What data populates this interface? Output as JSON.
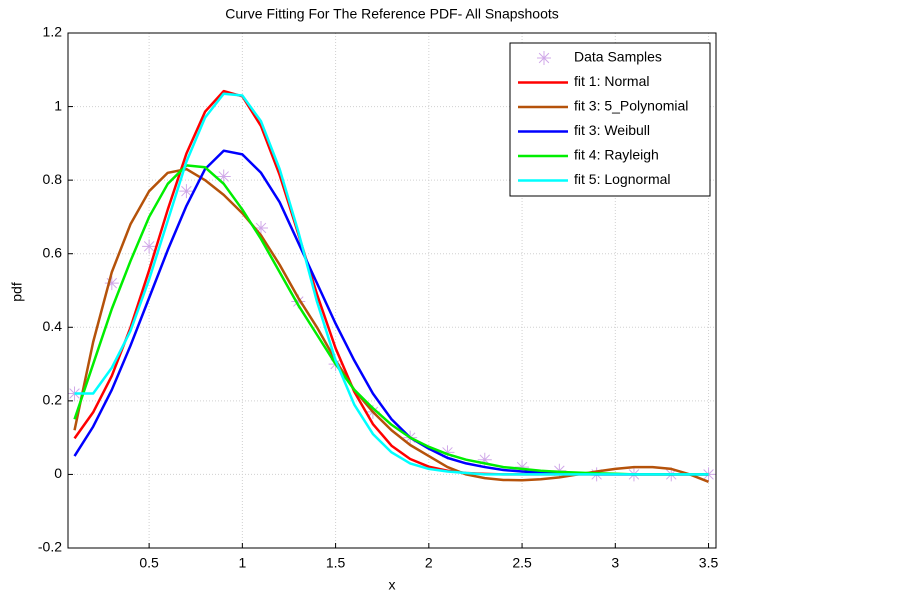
{
  "chart_data": {
    "type": "line",
    "title": "Curve Fitting For The Reference PDF- All Snapshoots",
    "x_label": "x",
    "y_label": "pdf",
    "xlim": [
      0.065,
      3.54
    ],
    "ylim": [
      -0.2,
      1.2
    ],
    "xticks": [
      0.5,
      1,
      1.5,
      2,
      2.5,
      3,
      3.5
    ],
    "yticks": [
      -0.2,
      0,
      0.2,
      0.4,
      0.6,
      0.8,
      1,
      1.2
    ],
    "grid": true,
    "legend": "top-right",
    "x": [
      0.1,
      0.2,
      0.3,
      0.4,
      0.5,
      0.6,
      0.7,
      0.8,
      0.9,
      1.0,
      1.1,
      1.2,
      1.3,
      1.4,
      1.5,
      1.6,
      1.7,
      1.8,
      1.9,
      2.0,
      2.1,
      2.2,
      2.3,
      2.4,
      2.5,
      2.6,
      2.7,
      2.8,
      2.9,
      3.0,
      3.1,
      3.2,
      3.3,
      3.4,
      3.5
    ],
    "series": [
      {
        "name": "Data Samples",
        "color": "#d0a8e8",
        "marker": "asterisk",
        "x": [
          0.1,
          0.3,
          0.5,
          0.7,
          0.9,
          1.1,
          1.3,
          1.5,
          1.7,
          1.9,
          2.1,
          2.3,
          2.5,
          2.7,
          2.9,
          3.1,
          3.3,
          3.5
        ],
        "values": [
          0.22,
          0.52,
          0.62,
          0.77,
          0.81,
          0.67,
          0.47,
          0.3,
          0.17,
          0.1,
          0.06,
          0.04,
          0.02,
          0.01,
          0,
          0,
          0,
          0
        ]
      },
      {
        "name": "fit 1: Normal",
        "color": "#ff0000",
        "values": [
          0.098,
          0.169,
          0.268,
          0.399,
          0.555,
          0.72,
          0.872,
          0.986,
          1.042,
          1.028,
          0.947,
          0.814,
          0.654,
          0.49,
          0.343,
          0.225,
          0.137,
          0.078,
          0.042,
          0.021,
          0.01,
          0.004,
          0.0015,
          0,
          0,
          0,
          0,
          0,
          0,
          0,
          0,
          0,
          0,
          0,
          0
        ]
      },
      {
        "name": "fit 3: 5_Polynomial",
        "color": "#b5520a",
        "values": [
          0.12,
          0.36,
          0.55,
          0.68,
          0.77,
          0.82,
          0.83,
          0.8,
          0.76,
          0.71,
          0.65,
          0.57,
          0.48,
          0.4,
          0.31,
          0.23,
          0.17,
          0.12,
          0.08,
          0.05,
          0.02,
          0,
          -0.01,
          -0.015,
          -0.016,
          -0.013,
          -0.008,
          0,
          0.008,
          0.015,
          0.02,
          0.02,
          0.015,
          0,
          -0.02
        ]
      },
      {
        "name": "fit 3: Weibull",
        "color": "#0000ff",
        "values": [
          0.05,
          0.13,
          0.23,
          0.35,
          0.48,
          0.61,
          0.73,
          0.83,
          0.88,
          0.87,
          0.82,
          0.74,
          0.63,
          0.52,
          0.41,
          0.31,
          0.22,
          0.15,
          0.1,
          0.07,
          0.045,
          0.03,
          0.02,
          0.012,
          0.008,
          0.005,
          0.003,
          0.001,
          0,
          0,
          0,
          0,
          0,
          0,
          0
        ]
      },
      {
        "name": "fit 4: Rayleigh",
        "color": "#00ee00",
        "values": [
          0.15,
          0.3,
          0.45,
          0.58,
          0.7,
          0.79,
          0.84,
          0.835,
          0.79,
          0.72,
          0.64,
          0.55,
          0.46,
          0.38,
          0.3,
          0.23,
          0.18,
          0.135,
          0.1,
          0.075,
          0.055,
          0.04,
          0.03,
          0.02,
          0.015,
          0.01,
          0.007,
          0.005,
          0.003,
          0.002,
          0,
          0,
          0,
          0,
          0
        ]
      },
      {
        "name": "fit 5: Lognormal",
        "color": "#00ffff",
        "values": [
          0.22,
          0.22,
          0.29,
          0.39,
          0.53,
          0.69,
          0.85,
          0.97,
          1.035,
          1.03,
          0.96,
          0.83,
          0.66,
          0.47,
          0.31,
          0.19,
          0.11,
          0.06,
          0.03,
          0.015,
          0.008,
          0.004,
          0,
          0,
          0,
          0,
          0,
          0,
          0,
          0,
          0,
          0,
          0,
          0,
          0
        ]
      }
    ]
  }
}
